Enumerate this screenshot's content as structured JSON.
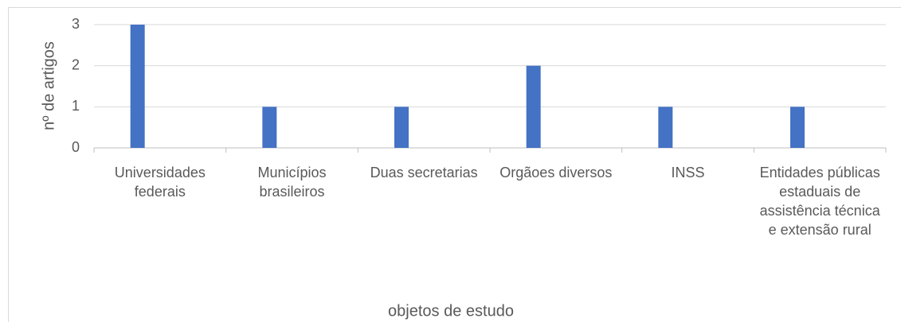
{
  "chart_data": {
    "type": "bar",
    "x_label": "objetos de estudo",
    "y_label": "nº de artigos",
    "categories": [
      "Universidades federais",
      "Municípios brasileiros",
      "Duas secretarias",
      "Orgãoes diversos",
      "INSS",
      "Entidades públicas estaduais de assistência técnica e extensão rural"
    ],
    "values": [
      3,
      1,
      1,
      2,
      1,
      1
    ],
    "color": "#4472c4",
    "ylim": [
      0,
      3
    ],
    "yticks": [
      0,
      1,
      2,
      3
    ],
    "grid": true
  }
}
